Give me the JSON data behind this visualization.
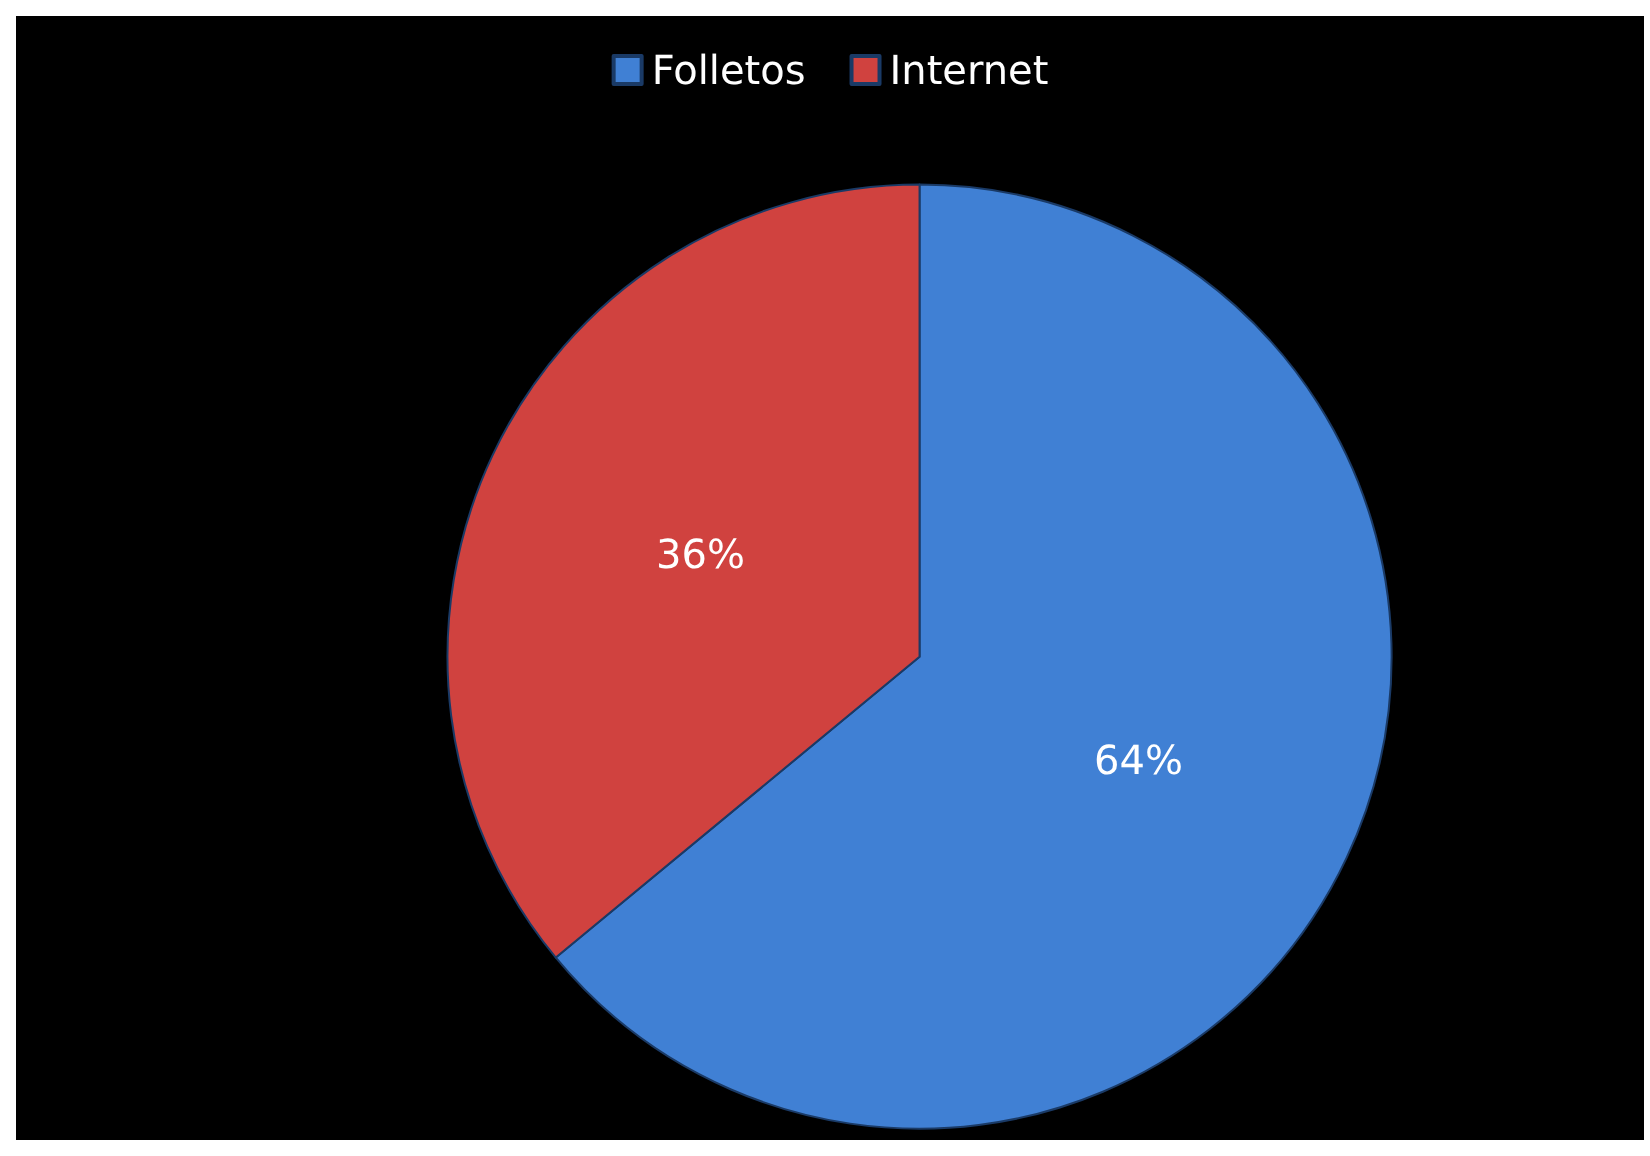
{
  "chart_data": {
    "type": "pie",
    "categories": [
      "Folletos",
      "Internet"
    ],
    "values": [
      64,
      36
    ],
    "colors": [
      "#4080d4",
      "#d0423f"
    ],
    "legend": "top",
    "value_labels": [
      "64%",
      "36%"
    ]
  }
}
